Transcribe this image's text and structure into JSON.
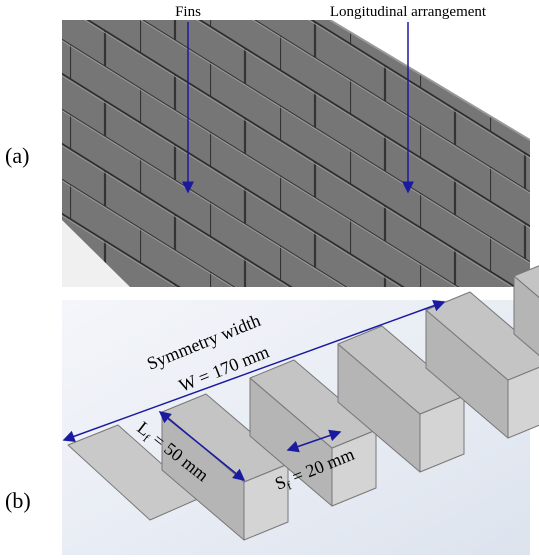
{
  "panel_a": {
    "label": "(a)",
    "annotations": [
      "Fins",
      "Longitudinal arrangement"
    ]
  },
  "panel_b": {
    "label": "(b)",
    "width_title": "Symmetry width",
    "width_value": "W = 170 mm",
    "fin_length": {
      "symbol": "L",
      "subscript": "f",
      "text": " = 50 mm"
    },
    "fin_spacing": {
      "symbol": "S",
      "subscript": "f",
      "text": " = 20 mm"
    }
  }
}
